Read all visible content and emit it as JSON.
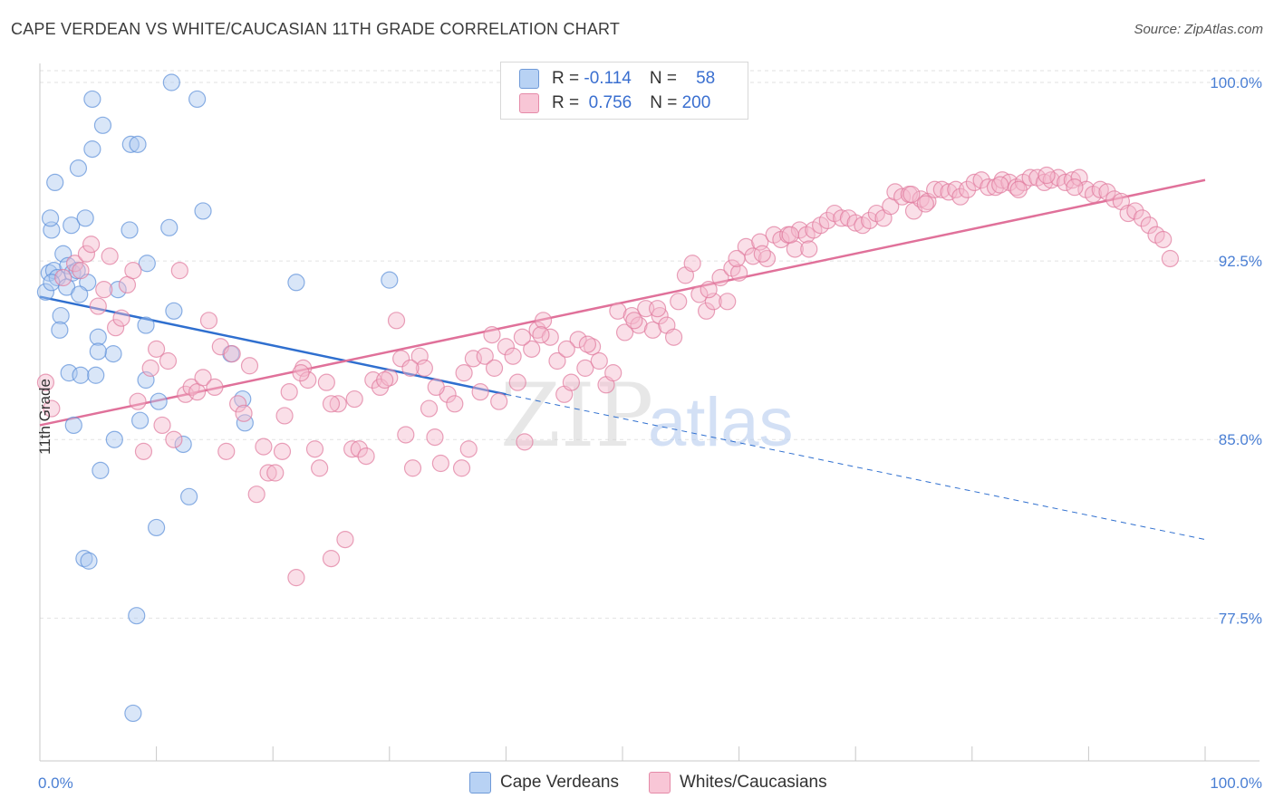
{
  "title": "CAPE VERDEAN VS WHITE/CAUCASIAN 11TH GRADE CORRELATION CHART",
  "source": "Source: ZipAtlas.com",
  "chart_data": {
    "type": "scatter",
    "ylabel": "11th Grade",
    "xlim": [
      0,
      100
    ],
    "ylim": [
      71.5,
      100.8
    ],
    "x_tick_labels": [
      "0.0%",
      "100.0%"
    ],
    "y_ticks": [
      {
        "value": 100.0,
        "label": "100.0%"
      },
      {
        "value": 92.5,
        "label": "92.5%"
      },
      {
        "value": 85.0,
        "label": "85.0%"
      },
      {
        "value": 77.5,
        "label": "77.5%"
      }
    ],
    "legend": [
      {
        "r_label": "R =",
        "r_value": "-0.114",
        "n_label": "N =",
        "n_value": "58"
      },
      {
        "r_label": "R =",
        "r_value": "0.756",
        "n_label": "N =",
        "n_value": "200"
      }
    ],
    "watermark": {
      "zip": "ZIP",
      "atlas": "atlas"
    },
    "series": [
      {
        "name": "Cape Verdeans",
        "color": "#5b8fd9",
        "fill": "#aac8f0",
        "trend": {
          "x0": 0,
          "y0": 91.0,
          "x1": 40,
          "y1": 86.9,
          "dash_x1": 100,
          "dash_y1": 80.8
        },
        "points": [
          [
            0.5,
            91.2
          ],
          [
            0.8,
            92.0
          ],
          [
            1.2,
            92.1
          ],
          [
            1.5,
            91.8
          ],
          [
            1.0,
            93.8
          ],
          [
            0.9,
            94.3
          ],
          [
            1.3,
            95.8
          ],
          [
            2.0,
            92.8
          ],
          [
            2.4,
            92.3
          ],
          [
            2.8,
            92.0
          ],
          [
            3.2,
            92.1
          ],
          [
            1.8,
            90.2
          ],
          [
            1.7,
            89.6
          ],
          [
            2.5,
            87.8
          ],
          [
            3.5,
            87.7
          ],
          [
            2.7,
            94.0
          ],
          [
            3.9,
            94.3
          ],
          [
            3.3,
            96.4
          ],
          [
            4.5,
            97.2
          ],
          [
            5.4,
            98.2
          ],
          [
            4.5,
            99.3
          ],
          [
            7.8,
            97.4
          ],
          [
            8.4,
            97.4
          ],
          [
            7.7,
            93.8
          ],
          [
            9.2,
            92.4
          ],
          [
            11.1,
            93.9
          ],
          [
            11.5,
            90.4
          ],
          [
            9.1,
            89.8
          ],
          [
            6.3,
            88.6
          ],
          [
            5.0,
            89.3
          ],
          [
            5.0,
            88.7
          ],
          [
            4.8,
            87.7
          ],
          [
            4.1,
            91.6
          ],
          [
            6.7,
            91.3
          ],
          [
            9.1,
            87.5
          ],
          [
            10.2,
            86.6
          ],
          [
            8.6,
            85.8
          ],
          [
            12.3,
            84.8
          ],
          [
            6.4,
            85.0
          ],
          [
            2.9,
            85.6
          ],
          [
            5.2,
            83.7
          ],
          [
            12.8,
            82.6
          ],
          [
            10.0,
            81.3
          ],
          [
            3.8,
            80.0
          ],
          [
            4.2,
            79.9
          ],
          [
            8.3,
            77.6
          ],
          [
            8.0,
            73.5
          ],
          [
            11.3,
            100.0
          ],
          [
            13.5,
            99.3
          ],
          [
            14.0,
            94.6
          ],
          [
            16.4,
            88.6
          ],
          [
            17.4,
            86.7
          ],
          [
            17.6,
            85.7
          ],
          [
            22.0,
            91.6
          ],
          [
            30.0,
            91.7
          ],
          [
            1.0,
            91.6
          ],
          [
            2.3,
            91.4
          ],
          [
            3.4,
            91.1
          ]
        ]
      },
      {
        "name": "Whites/Caucasians",
        "color": "#e0799c",
        "fill": "#f5b9cd",
        "trend": {
          "x0": 0,
          "y0": 85.6,
          "x1": 100,
          "y1": 95.9
        },
        "points": [
          [
            0.5,
            87.4
          ],
          [
            1.0,
            86.3
          ],
          [
            2.0,
            91.8
          ],
          [
            3.0,
            92.4
          ],
          [
            3.5,
            92.1
          ],
          [
            4.0,
            92.8
          ],
          [
            4.4,
            93.2
          ],
          [
            5.0,
            90.6
          ],
          [
            5.5,
            91.3
          ],
          [
            6.0,
            92.7
          ],
          [
            6.5,
            89.7
          ],
          [
            7.0,
            90.1
          ],
          [
            7.5,
            91.5
          ],
          [
            8.0,
            92.1
          ],
          [
            8.4,
            86.6
          ],
          [
            8.9,
            84.5
          ],
          [
            9.5,
            88.0
          ],
          [
            10.0,
            88.8
          ],
          [
            10.5,
            85.6
          ],
          [
            11.0,
            88.3
          ],
          [
            11.5,
            85.0
          ],
          [
            12.0,
            92.1
          ],
          [
            12.5,
            86.9
          ],
          [
            13.0,
            87.2
          ],
          [
            13.5,
            87.0
          ],
          [
            14.0,
            87.6
          ],
          [
            14.5,
            90.0
          ],
          [
            15.0,
            87.2
          ],
          [
            15.5,
            88.9
          ],
          [
            16.0,
            84.5
          ],
          [
            16.5,
            88.6
          ],
          [
            17.0,
            86.5
          ],
          [
            17.5,
            86.1
          ],
          [
            18.0,
            88.1
          ],
          [
            18.6,
            82.7
          ],
          [
            19.2,
            84.7
          ],
          [
            19.6,
            83.6
          ],
          [
            20.2,
            83.6
          ],
          [
            20.8,
            84.5
          ],
          [
            21.4,
            87.0
          ],
          [
            22.0,
            79.2
          ],
          [
            22.6,
            88.0
          ],
          [
            23.0,
            87.5
          ],
          [
            23.6,
            84.6
          ],
          [
            24.0,
            83.8
          ],
          [
            24.6,
            87.4
          ],
          [
            25.0,
            80.0
          ],
          [
            25.6,
            86.5
          ],
          [
            26.2,
            80.8
          ],
          [
            26.8,
            84.6
          ],
          [
            27.4,
            84.6
          ],
          [
            28.0,
            84.3
          ],
          [
            28.6,
            87.5
          ],
          [
            29.2,
            87.2
          ],
          [
            30.0,
            87.6
          ],
          [
            30.6,
            90.0
          ],
          [
            31.0,
            88.4
          ],
          [
            31.4,
            85.2
          ],
          [
            32.0,
            83.8
          ],
          [
            32.6,
            88.5
          ],
          [
            33.0,
            88.0
          ],
          [
            33.4,
            86.3
          ],
          [
            33.9,
            85.1
          ],
          [
            34.4,
            84.0
          ],
          [
            35.0,
            86.9
          ],
          [
            35.6,
            86.5
          ],
          [
            36.2,
            83.8
          ],
          [
            36.8,
            84.6
          ],
          [
            37.2,
            88.4
          ],
          [
            37.8,
            87.0
          ],
          [
            38.2,
            88.5
          ],
          [
            38.8,
            89.4
          ],
          [
            39.4,
            86.6
          ],
          [
            40.0,
            88.9
          ],
          [
            40.6,
            88.5
          ],
          [
            41.0,
            87.4
          ],
          [
            41.6,
            84.9
          ],
          [
            42.2,
            88.8
          ],
          [
            42.7,
            89.6
          ],
          [
            43.2,
            90.0
          ],
          [
            43.8,
            89.3
          ],
          [
            44.4,
            88.3
          ],
          [
            45.0,
            86.9
          ],
          [
            45.6,
            87.4
          ],
          [
            46.2,
            89.2
          ],
          [
            46.8,
            88.0
          ],
          [
            47.4,
            88.9
          ],
          [
            48.0,
            88.3
          ],
          [
            48.6,
            87.3
          ],
          [
            49.2,
            87.8
          ],
          [
            49.6,
            90.4
          ],
          [
            50.2,
            89.5
          ],
          [
            50.8,
            90.2
          ],
          [
            51.4,
            89.8
          ],
          [
            52.0,
            90.5
          ],
          [
            52.6,
            89.6
          ],
          [
            53.2,
            90.2
          ],
          [
            53.8,
            89.8
          ],
          [
            54.4,
            89.3
          ],
          [
            54.8,
            90.8
          ],
          [
            55.4,
            91.9
          ],
          [
            56.0,
            92.4
          ],
          [
            56.6,
            91.1
          ],
          [
            57.2,
            90.4
          ],
          [
            57.8,
            90.8
          ],
          [
            58.4,
            91.8
          ],
          [
            59.0,
            90.8
          ],
          [
            59.4,
            92.2
          ],
          [
            60.0,
            92.0
          ],
          [
            60.6,
            93.1
          ],
          [
            61.2,
            92.7
          ],
          [
            61.8,
            93.3
          ],
          [
            62.4,
            92.6
          ],
          [
            63.0,
            93.6
          ],
          [
            63.6,
            93.4
          ],
          [
            64.2,
            93.6
          ],
          [
            64.8,
            93.0
          ],
          [
            65.2,
            93.8
          ],
          [
            65.8,
            93.6
          ],
          [
            66.4,
            93.8
          ],
          [
            67.0,
            94.0
          ],
          [
            67.6,
            94.2
          ],
          [
            68.2,
            94.5
          ],
          [
            68.8,
            94.3
          ],
          [
            69.4,
            94.3
          ],
          [
            70.0,
            94.1
          ],
          [
            70.6,
            94.0
          ],
          [
            71.2,
            94.2
          ],
          [
            71.8,
            94.5
          ],
          [
            72.4,
            94.3
          ],
          [
            73.0,
            94.8
          ],
          [
            73.4,
            95.4
          ],
          [
            74.0,
            95.2
          ],
          [
            74.6,
            95.3
          ],
          [
            75.0,
            94.6
          ],
          [
            75.6,
            95.1
          ],
          [
            76.2,
            95.0
          ],
          [
            76.8,
            95.5
          ],
          [
            77.4,
            95.5
          ],
          [
            78.0,
            95.4
          ],
          [
            78.6,
            95.5
          ],
          [
            79.0,
            95.2
          ],
          [
            79.6,
            95.5
          ],
          [
            80.2,
            95.8
          ],
          [
            80.8,
            95.9
          ],
          [
            81.4,
            95.6
          ],
          [
            82.0,
            95.6
          ],
          [
            82.6,
            95.9
          ],
          [
            83.2,
            95.8
          ],
          [
            83.8,
            95.6
          ],
          [
            84.4,
            95.8
          ],
          [
            85.0,
            96.0
          ],
          [
            85.6,
            96.0
          ],
          [
            86.2,
            95.8
          ],
          [
            86.8,
            95.9
          ],
          [
            87.4,
            96.0
          ],
          [
            88.0,
            95.8
          ],
          [
            88.6,
            95.9
          ],
          [
            89.2,
            96.0
          ],
          [
            89.8,
            95.5
          ],
          [
            90.4,
            95.3
          ],
          [
            91.0,
            95.5
          ],
          [
            91.6,
            95.4
          ],
          [
            92.2,
            95.1
          ],
          [
            92.8,
            95.0
          ],
          [
            93.4,
            94.5
          ],
          [
            94.0,
            94.6
          ],
          [
            94.6,
            94.3
          ],
          [
            95.2,
            94.0
          ],
          [
            95.8,
            93.6
          ],
          [
            96.4,
            93.4
          ],
          [
            97.0,
            92.6
          ],
          [
            82.4,
            95.7
          ],
          [
            84.0,
            95.5
          ],
          [
            86.4,
            96.1
          ],
          [
            88.8,
            95.6
          ],
          [
            74.8,
            95.3
          ],
          [
            76.0,
            94.9
          ],
          [
            66.0,
            93.0
          ],
          [
            64.4,
            93.6
          ],
          [
            62.0,
            92.8
          ],
          [
            59.8,
            92.6
          ],
          [
            57.4,
            91.3
          ],
          [
            53.0,
            90.5
          ],
          [
            51.0,
            90.0
          ],
          [
            47.0,
            89.0
          ],
          [
            45.2,
            88.8
          ],
          [
            43.0,
            89.4
          ],
          [
            41.4,
            89.3
          ],
          [
            39.0,
            88.0
          ],
          [
            36.4,
            87.8
          ],
          [
            34.0,
            87.2
          ],
          [
            31.8,
            88.0
          ],
          [
            29.6,
            87.5
          ],
          [
            27.0,
            86.7
          ],
          [
            25.0,
            86.5
          ],
          [
            22.4,
            87.8
          ],
          [
            21.0,
            86.0
          ]
        ]
      }
    ]
  },
  "bottom_legend": [
    "Cape Verdeans",
    "Whites/Caucasians"
  ]
}
